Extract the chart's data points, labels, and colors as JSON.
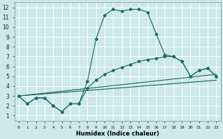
{
  "xlabel": "Humidex (Indice chaleur)",
  "bg_color": "#cce8e8",
  "grid_color": "#ffffff",
  "line_color": "#1f6b6b",
  "xlim": [
    -0.5,
    23.5
  ],
  "ylim": [
    0.5,
    12.5
  ],
  "xticks": [
    0,
    1,
    2,
    3,
    4,
    5,
    6,
    7,
    8,
    9,
    10,
    11,
    12,
    13,
    14,
    15,
    16,
    17,
    18,
    19,
    20,
    21,
    22,
    23
  ],
  "yticks": [
    1,
    2,
    3,
    4,
    5,
    6,
    7,
    8,
    9,
    10,
    11,
    12
  ],
  "series1_x": [
    0,
    1,
    2,
    3,
    4,
    5,
    6,
    7,
    8,
    9,
    10,
    11,
    12,
    13,
    14,
    15,
    16,
    17,
    18,
    19,
    20,
    21,
    22,
    23
  ],
  "series1_y": [
    3.0,
    2.2,
    2.8,
    2.8,
    2.0,
    1.4,
    2.2,
    2.2,
    4.5,
    8.8,
    11.2,
    11.8,
    11.6,
    11.8,
    11.8,
    11.5,
    9.3,
    7.2,
    7.0,
    6.5,
    5.0,
    5.6,
    5.8,
    5.0
  ],
  "series2_x": [
    0,
    1,
    2,
    3,
    4,
    5,
    6,
    7,
    8,
    9,
    10,
    11,
    12,
    13,
    14,
    15,
    16,
    17,
    18,
    19,
    20,
    21,
    22,
    23
  ],
  "series2_y": [
    3.0,
    2.2,
    2.8,
    2.8,
    2.0,
    1.4,
    2.2,
    2.2,
    3.8,
    4.6,
    5.2,
    5.6,
    5.9,
    6.2,
    6.5,
    6.7,
    6.8,
    7.0,
    7.0,
    6.5,
    5.0,
    5.6,
    5.8,
    5.0
  ],
  "series3_x": [
    0,
    23
  ],
  "series3_y": [
    3.0,
    5.2
  ],
  "series4_x": [
    0,
    23
  ],
  "series4_y": [
    3.0,
    4.6
  ]
}
